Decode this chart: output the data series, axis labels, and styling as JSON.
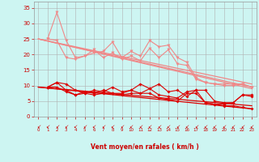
{
  "xlabel": "Vent moyen/en rafales ( km/h )",
  "bg_color": "#cdf5f2",
  "grid_color": "#b0b0b0",
  "xlim": [
    -0.5,
    23.5
  ],
  "ylim": [
    0,
    37
  ],
  "yticks": [
    0,
    5,
    10,
    15,
    20,
    25,
    30,
    35
  ],
  "xticks": [
    0,
    1,
    2,
    3,
    4,
    5,
    6,
    7,
    8,
    9,
    10,
    11,
    12,
    13,
    14,
    15,
    16,
    17,
    18,
    19,
    20,
    21,
    22,
    23
  ],
  "light_trend_lines": [
    [
      [
        0,
        25.0
      ],
      [
        23,
        10.5
      ]
    ],
    [
      [
        0,
        25.0
      ],
      [
        23,
        9.5
      ]
    ],
    [
      [
        0,
        25.0
      ],
      [
        23,
        9.0
      ]
    ]
  ],
  "light_jagged_lines": [
    [
      25.0,
      33.5,
      24.5,
      19.0,
      19.5,
      20.5,
      21.0,
      24.0,
      19.0,
      21.0,
      19.5,
      24.5,
      22.5,
      23.0,
      19.0,
      17.5,
      12.5,
      11.0,
      10.5,
      10.5,
      10.5,
      10.5,
      9.5
    ],
    [
      25.0,
      24.5,
      19.0,
      18.5,
      19.5,
      21.5,
      19.0,
      20.5,
      18.5,
      19.5,
      18.0,
      22.0,
      19.0,
      21.5,
      17.0,
      16.5,
      12.0,
      11.0,
      10.5,
      10.0,
      10.0,
      10.5,
      9.5
    ]
  ],
  "dark_trend_lines": [
    [
      [
        0,
        9.5
      ],
      [
        23,
        2.5
      ]
    ],
    [
      [
        0,
        9.5
      ],
      [
        23,
        3.5
      ]
    ]
  ],
  "dark_jagged_lines": [
    [
      9.5,
      11.0,
      10.5,
      8.5,
      7.5,
      8.5,
      8.0,
      9.5,
      8.0,
      8.5,
      10.5,
      9.0,
      10.5,
      8.0,
      8.5,
      6.5,
      8.5,
      8.5,
      5.0,
      4.5,
      4.5,
      7.0,
      7.0
    ],
    [
      9.5,
      11.0,
      8.5,
      7.0,
      8.0,
      7.5,
      8.5,
      7.5,
      7.5,
      8.5,
      7.5,
      9.0,
      7.0,
      6.5,
      6.0,
      8.0,
      8.5,
      4.5,
      4.0,
      4.0,
      4.5,
      7.0,
      6.5
    ],
    [
      9.5,
      9.5,
      8.0,
      7.0,
      7.5,
      7.0,
      7.5,
      7.5,
      7.0,
      7.5,
      7.5,
      7.5,
      6.0,
      5.5,
      5.0,
      7.5,
      7.5,
      4.5,
      4.0,
      3.5,
      3.5,
      3.0,
      2.5
    ]
  ],
  "light_color": "#f08888",
  "dark_color": "#dd0000"
}
